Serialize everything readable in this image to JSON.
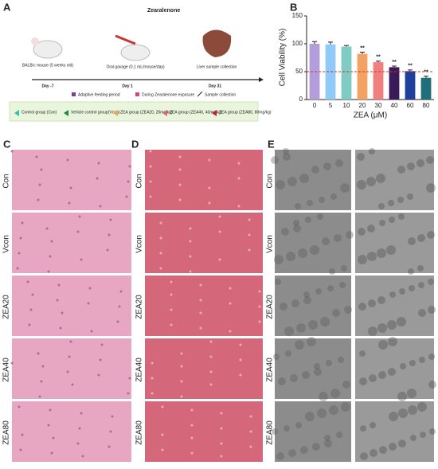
{
  "panel_labels": [
    "A",
    "B",
    "C",
    "D",
    "E"
  ],
  "schematic": {
    "compound": "Zearalenone",
    "mouse": "BALB/c mouse (5 weeks old)",
    "gavage": "Oral gavage (0.1 mL/mouse/day)",
    "liver": "Liver sample collection",
    "days": [
      "Day -7",
      "Day 1",
      "Day 31"
    ],
    "phases": [
      "Adaptive feeding period",
      "During Zearalenone exposure",
      "Sample collection"
    ],
    "groups": [
      {
        "label": "Control group (Con)",
        "color": "#2ec4a5"
      },
      {
        "label": "Vehicle control group(Vcon)",
        "color": "#1f8a3a"
      },
      {
        "label": "ZEA group (ZEA20, 20mg/kg)",
        "color": "#f4a261"
      },
      {
        "label": "ZEA group (ZEA40, 40mg/kg)",
        "color": "#e0607e"
      },
      {
        "label": "ZEA group (ZEA80, 80mg/kg)",
        "color": "#c0202a"
      }
    ]
  },
  "chart_data": {
    "type": "bar",
    "x_label": "ZEA (μM)",
    "y_label": "Cell Viability (%)",
    "categories": [
      "0",
      "5",
      "10",
      "20",
      "30",
      "40",
      "60",
      "80"
    ],
    "values": [
      100,
      99,
      95,
      82,
      67,
      58,
      51,
      39
    ],
    "errors": [
      4,
      4,
      2,
      3,
      2,
      2,
      2,
      3
    ],
    "significance": [
      null,
      null,
      null,
      "**",
      "**",
      "**",
      "**",
      "**"
    ],
    "colors": [
      "#b39ddb",
      "#90caf9",
      "#80cbc4",
      "#f4a261",
      "#f08080",
      "#3b1a5a",
      "#1f3f9c",
      "#1f6f7a"
    ],
    "ylim": [
      0,
      150
    ],
    "yticks": [
      0,
      50,
      100,
      150
    ],
    "reference_line": 50,
    "reference_color": "#d32f2f"
  },
  "rows": [
    "Con",
    "Vcon",
    "ZEA20",
    "ZEA40",
    "ZEA80"
  ]
}
